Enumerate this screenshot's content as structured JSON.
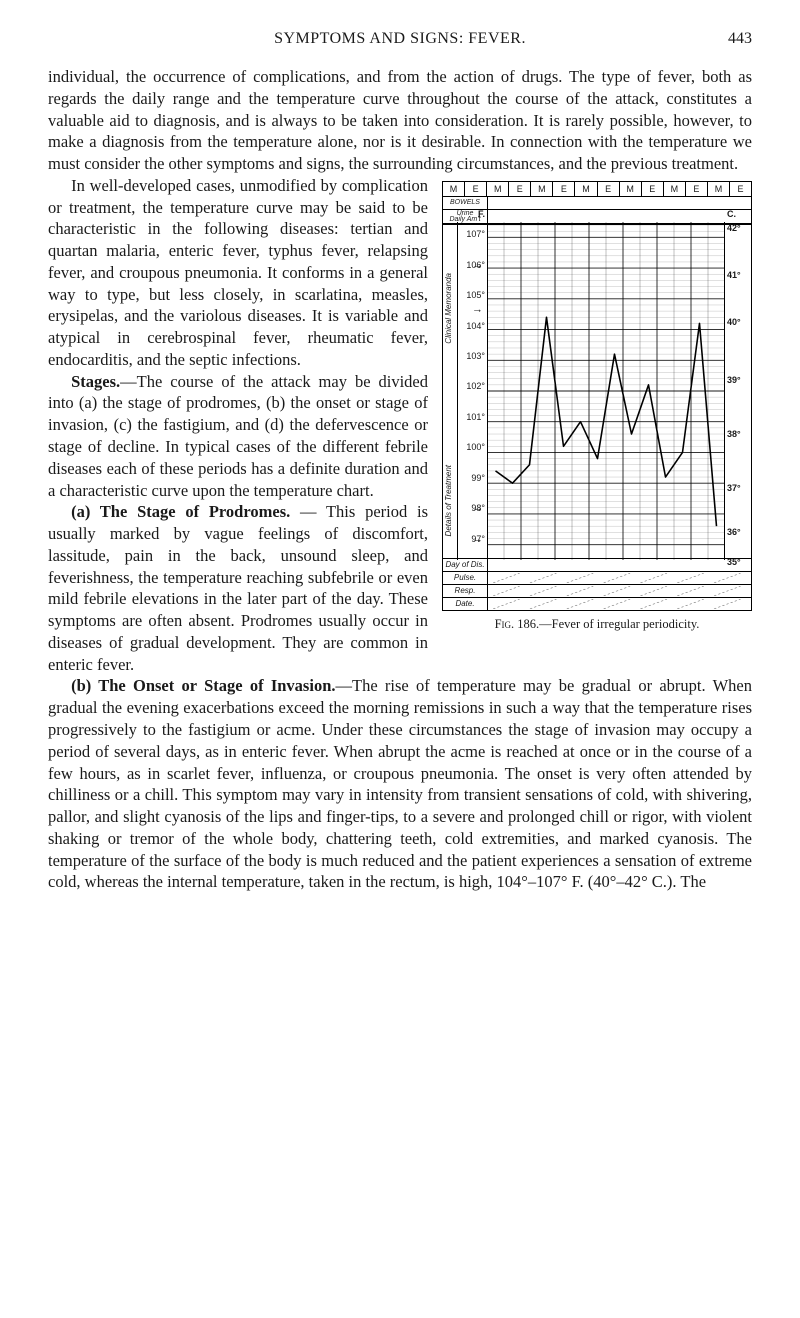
{
  "page": {
    "running_head": "SYMPTOMS AND SIGNS: FEVER.",
    "number": "443"
  },
  "para1": "individual, the occurrence of complications, and from the action of drugs. The type of fever, both as regards the daily range and the temperature curve throughout the course of the attack, constitutes a valuable aid to diag­nosis, and is always to be taken into consideration. It is rarely possible, however, to make a diagnosis from the temperature alone, nor is it desirable. In connection with the temperature we must consider the other symptoms and signs, the surrounding circumstances, and the previous treatment.",
  "para2": "In well-developed cases, unmodified by complication or treatment, the temperature curve may be said to be characteristic in the following diseases: tertian and quartan malaria, enteric fever, typhus fever, relaps­ing fever, and croupous pneumonia. It con­forms in a general way to type, but less closely, in scarlatina, measles, erysipelas, and the variolous diseases. It is variable and atypical in cerebrospinal fever, rheumatic fever, endocarditis, and the septic infections.",
  "stages_head": "Stages.",
  "stages_body": "—The course of the attack may be divided into (a) the stage of prodromes, (b) the onset or stage of invasion, (c) the fastigium, and (d) the defervescence or stage of decline. In typical cases of the different febrile diseases each of these periods has a definite duration and a characteristic curve upon the temperature chart.",
  "prod_head": "(a) The Stage of Prodromes.",
  "prod_body": " — This pe­riod is usually marked by vague feelings of discomfort, lassitude, pain in the back, un­sound sleep, and feverishness, the tempera­ture reaching subfebrile or even mild febrile elevations in the later part of the day. These symptoms are often absent. Prodromes usu­ally occur in diseases of gradual develop­ment. They are common in enteric fever.",
  "onset_head": "(b) The Onset or Stage of Invasion.",
  "onset_body": "—The rise of temperature may be gradual or abrupt. When gradual the evening exacerbations exceed the morning remissions in such a way that the temperature rises progressively to the fastigium or acme. Under these circumstances the stage of invasion may occupy a period of several days, as in enteric fever. When abrupt the acme is reached at once or in the course of a few hours, as in scarlet fever, influenza, or croupous pneumonia. The onset is very often attended by chilliness or a chill. This symptom may vary in intensity from transient sensations of cold, with shivering, pallor, and slight cyanosis of the lips and finger-tips, to a severe and prolonged chill or rigor, with violent shaking or tremor of the whole body, chattering teeth, cold extremities, and marked cyanosis. The temperature of the surface of the body is much reduced and the patient experiences a sensation of extreme cold, whereas the internal temperature, taken in the rectum, is high, 104°–107° F. (40°–42° C.). The",
  "figure": {
    "caption_lead": "Fig. 186.",
    "caption_rest": "—Fever of irregular pe­riodicity.",
    "header_cells": [
      "M",
      "E",
      "M",
      "E",
      "M",
      "E",
      "M",
      "E",
      "M",
      "E",
      "M",
      "E",
      "M",
      "E"
    ],
    "row_labels": {
      "bowels": "BOWELS",
      "urine": "Urine",
      "daily": "Daily Am't"
    },
    "left_axis_letter": "F.",
    "left_vertical_labels": {
      "upper": "Clinical Memoranda",
      "lower": "Details of Treatment"
    },
    "f_ticks": [
      {
        "v": 107,
        "pct": 4
      },
      {
        "v": 106,
        "pct": 13
      },
      {
        "v": 105,
        "pct": 22
      },
      {
        "v": 104,
        "pct": 31
      },
      {
        "v": 103,
        "pct": 40
      },
      {
        "v": 102,
        "pct": 49
      },
      {
        "v": 101,
        "pct": 58
      },
      {
        "v": 100,
        "pct": 67
      },
      {
        "v": 99,
        "pct": 76
      },
      {
        "v": 98,
        "pct": 85
      },
      {
        "v": 97,
        "pct": 94
      }
    ],
    "arrow_positions_pct": [
      13,
      26,
      85,
      94
    ],
    "c_label": "C.",
    "c_ticks": [
      {
        "v": "42°",
        "pct": 2
      },
      {
        "v": "41°",
        "pct": 16
      },
      {
        "v": "40°",
        "pct": 30
      },
      {
        "v": "39°",
        "pct": 47
      },
      {
        "v": "38°",
        "pct": 63
      },
      {
        "v": "37°",
        "pct": 79
      },
      {
        "v": "36°",
        "pct": 92
      },
      {
        "v": "35°",
        "pct": 101
      }
    ],
    "bottom_rows": [
      "Day of Dis.",
      "Pulse.",
      "Resp.",
      "Date."
    ],
    "grid": {
      "cols": 14,
      "f_min": 96.5,
      "f_max": 107.5,
      "minor_per_degree": 5,
      "grid_color": "#000000",
      "grid_minor_opacity": 0.35,
      "line_color": "#000000",
      "line_width": 1.6
    },
    "series": [
      99.4,
      99.0,
      99.6,
      104.4,
      100.2,
      101.0,
      99.8,
      103.2,
      100.6,
      102.2,
      99.2,
      100.0,
      104.2,
      97.6
    ]
  }
}
